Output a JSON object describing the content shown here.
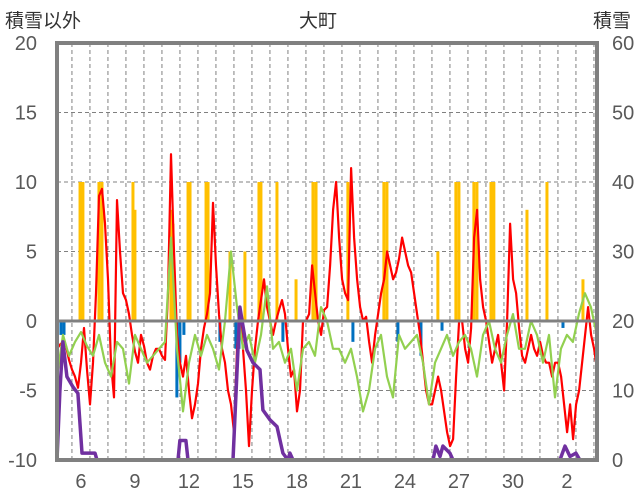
{
  "chart_data": {
    "type": "line",
    "title": "大町",
    "ylabel_left": "積雪以外",
    "ylabel_right": "積雪",
    "ylim_left": [
      -10,
      20
    ],
    "ylim_right": [
      0,
      60
    ],
    "yticks_left": [
      "20",
      "15",
      "10",
      "5",
      "0",
      "-5",
      "-10"
    ],
    "yticks_right": [
      "60",
      "50",
      "40",
      "30",
      "20",
      "10",
      "0"
    ],
    "xlim_days": [
      4.67,
      34.67
    ],
    "xticks": [
      {
        "day": 6,
        "label": "6"
      },
      {
        "day": 9,
        "label": "9"
      },
      {
        "day": 12,
        "label": "12"
      },
      {
        "day": 15,
        "label": "15"
      },
      {
        "day": 18,
        "label": "18"
      },
      {
        "day": 21,
        "label": "21"
      },
      {
        "day": 24,
        "label": "24"
      },
      {
        "day": 27,
        "label": "27"
      },
      {
        "day": 30,
        "label": "30"
      },
      {
        "day": 33,
        "label": "2"
      }
    ],
    "grid": "dashed, daily vertical and every 5 horizontal",
    "colors": {
      "red": "#FF0000",
      "green": "#92D050",
      "purple": "#7030A0",
      "orange": "#FFC000",
      "blue": "#0070C0",
      "axis": "#808080"
    },
    "series": [
      {
        "name": "red",
        "axis": "left",
        "start_day": 4.67,
        "step_days": 0.1667,
        "values": [
          -2,
          -1.7,
          -1.5,
          -1.8,
          -2.8,
          -3.5,
          -4,
          -4.8,
          -3,
          -0.5,
          -3.5,
          -6,
          -3,
          2,
          9,
          9.5,
          7,
          3,
          -3,
          -5.5,
          8.7,
          5,
          2,
          1.5,
          0.5,
          -1,
          -2.2,
          -3,
          -1,
          -1.8,
          -3,
          -3.5,
          -2.5,
          -2,
          -2,
          -2.5,
          -2.8,
          2,
          12,
          5,
          -1,
          -3,
          -4,
          -2.5,
          -5,
          -7,
          -6,
          -4.5,
          -2,
          -0.5,
          0.5,
          2,
          8.5,
          4,
          0.5,
          -2,
          -3,
          -5,
          -6,
          -8,
          -2,
          0.5,
          -2,
          -5,
          -9,
          -5,
          -2,
          0,
          1.5,
          3,
          1,
          0,
          -1,
          0,
          0.8,
          1.5,
          0.5,
          -2,
          -4,
          -3.5,
          -6.5,
          -5,
          0,
          0,
          0.5,
          4,
          2,
          0,
          -1,
          0.8,
          1,
          4,
          8,
          10,
          6,
          3,
          2,
          1.5,
          11,
          6,
          3,
          1,
          0,
          0.3,
          -1.5,
          -3,
          -1,
          0.5,
          2,
          3,
          5,
          4,
          3,
          3.5,
          4.5,
          6,
          5,
          4,
          3.5,
          2,
          0.5,
          -1,
          -3,
          -5,
          -6,
          -6,
          -5,
          -4,
          -5,
          -6.5,
          -8,
          -9,
          -8.5,
          -4,
          0,
          0,
          -2,
          -3,
          -0.5,
          6,
          8,
          3,
          1,
          0,
          -1.5,
          -3,
          -2,
          -1,
          -3,
          -5,
          0,
          7,
          3,
          2,
          -0.5,
          -2.5,
          -3,
          -2,
          -1,
          -2,
          -2.5,
          -1.5,
          -2.5,
          -3,
          -3,
          -4,
          -3,
          -3,
          -4,
          -6,
          -8,
          -6,
          -8.5,
          -6,
          -5,
          -3,
          -1,
          1,
          -1,
          -2,
          -3.5
        ]
      },
      {
        "name": "green",
        "axis": "left",
        "start_day": 4.67,
        "step_days": 0.3333,
        "values": [
          -4,
          -1,
          -2.5,
          -1.5,
          -0.8,
          -1.8,
          -2.5,
          -1,
          -3,
          -4,
          -1.5,
          -2,
          -4.5,
          -1,
          -2,
          -3,
          -2.5,
          -2,
          -1.5,
          6,
          -2,
          -6.5,
          -3,
          -1,
          -2.5,
          -1,
          -2,
          -3.5,
          0,
          5,
          1,
          -2,
          -1,
          -3,
          -1,
          2.5,
          -2,
          -1.5,
          -3,
          -2,
          -5,
          -2,
          -1.5,
          -2.5,
          1,
          0,
          -2,
          -2,
          -3,
          -2,
          -4,
          -6.5,
          -5,
          -2,
          -1,
          -4,
          -5.5,
          -1,
          -2,
          -1.5,
          -1,
          -3,
          -6,
          -3,
          -2,
          -1,
          -2.5,
          -1.5,
          -1,
          -2,
          -4,
          -1,
          0,
          -2,
          -3,
          -1,
          0.5,
          -2,
          -2,
          0,
          -1,
          -3,
          -1,
          -5.5,
          -2,
          -1,
          -1.5,
          0.5,
          2,
          1,
          -1
        ]
      },
      {
        "name": "purple",
        "axis": "right",
        "points": [
          [
            4.67,
            0
          ],
          [
            4.83,
            10
          ],
          [
            5.0,
            17
          ],
          [
            5.22,
            12
          ],
          [
            5.56,
            10.5
          ],
          [
            5.83,
            9.6
          ],
          [
            6.06,
            1
          ],
          [
            6.78,
            1
          ],
          [
            6.89,
            0
          ],
          [
            11.39,
            0
          ],
          [
            11.5,
            2.8
          ],
          [
            11.83,
            2.8
          ],
          [
            11.95,
            0
          ],
          [
            14.45,
            0
          ],
          [
            14.83,
            22
          ],
          [
            15.22,
            15.8
          ],
          [
            15.56,
            14
          ],
          [
            15.95,
            13
          ],
          [
            16.11,
            7.2
          ],
          [
            16.5,
            5.8
          ],
          [
            16.89,
            4.8
          ],
          [
            17.22,
            1
          ],
          [
            17.5,
            0
          ],
          [
            17.61,
            1
          ],
          [
            17.78,
            0
          ],
          [
            25.56,
            0
          ],
          [
            25.72,
            2
          ],
          [
            25.95,
            0.5
          ],
          [
            26.11,
            2
          ],
          [
            26.5,
            1
          ],
          [
            26.67,
            0
          ],
          [
            32.61,
            0
          ],
          [
            32.89,
            2
          ],
          [
            33.17,
            0.5
          ],
          [
            33.5,
            1
          ],
          [
            33.72,
            0
          ],
          [
            34.67,
            0
          ]
        ]
      },
      {
        "name": "orange-bars",
        "axis": "left",
        "type": "bar",
        "points": [
          [
            5.95,
            10
          ],
          [
            6.11,
            10
          ],
          [
            7.0,
            10
          ],
          [
            7.17,
            10
          ],
          [
            8.89,
            10
          ],
          [
            9.0,
            8
          ],
          [
            11.0,
            8
          ],
          [
            11.11,
            7
          ],
          [
            11.95,
            10
          ],
          [
            12.06,
            10
          ],
          [
            12.95,
            10
          ],
          [
            13.06,
            10
          ],
          [
            14.28,
            5
          ],
          [
            15.11,
            5
          ],
          [
            15.89,
            10
          ],
          [
            16.0,
            10
          ],
          [
            16.89,
            10
          ],
          [
            17.95,
            3
          ],
          [
            18.89,
            10
          ],
          [
            19.06,
            10
          ],
          [
            20.83,
            10
          ],
          [
            22.83,
            10
          ],
          [
            23.0,
            10
          ],
          [
            25.83,
            5
          ],
          [
            26.83,
            10
          ],
          [
            27.0,
            10
          ],
          [
            27.83,
            10
          ],
          [
            28.0,
            10
          ],
          [
            28.78,
            10
          ],
          [
            28.94,
            10
          ],
          [
            30.78,
            8
          ],
          [
            31.89,
            10
          ],
          [
            33.89,
            3
          ]
        ]
      },
      {
        "name": "blue-bars",
        "axis": "left",
        "type": "bar",
        "points": [
          [
            4.89,
            -1
          ],
          [
            5.06,
            -1
          ],
          [
            11.33,
            -5.5
          ],
          [
            11.5,
            -3
          ],
          [
            11.72,
            -1
          ],
          [
            13.72,
            -1.5
          ],
          [
            14.61,
            -2
          ],
          [
            14.78,
            -2
          ],
          [
            17.22,
            -1.5
          ],
          [
            21.11,
            -1.5
          ],
          [
            23.61,
            -1.5
          ],
          [
            24.89,
            -2.5
          ],
          [
            26.06,
            -0.7
          ],
          [
            32.78,
            -0.5
          ]
        ]
      }
    ]
  }
}
